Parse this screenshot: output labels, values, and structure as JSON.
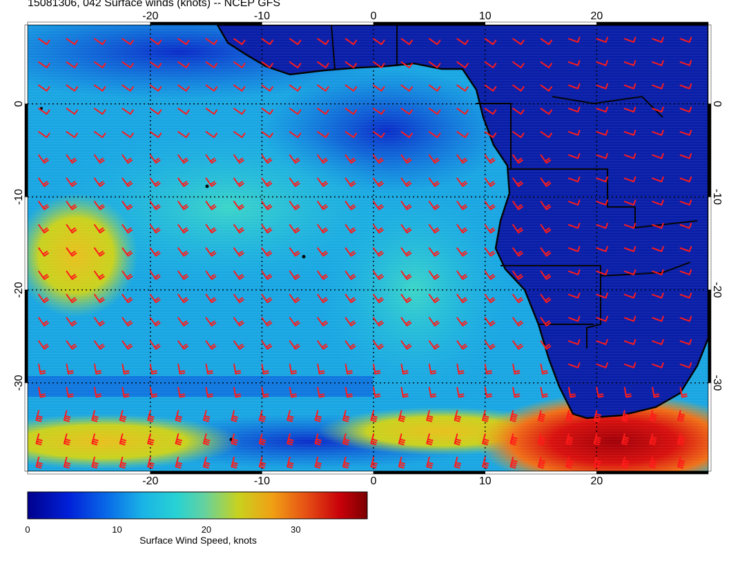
{
  "title": "15081306, 042 Surface winds (knots) -- NCEP GFS",
  "map": {
    "lon_range": [
      -31,
      30
    ],
    "lat_range": [
      -39.5,
      8.5
    ],
    "lon_ticks": [
      "-20",
      "-10",
      "0",
      "10",
      "20"
    ],
    "lat_ticks": [
      "0",
      "-10",
      "-20",
      "-30"
    ],
    "lon_tick_values": [
      -20,
      -10,
      0,
      10,
      20
    ],
    "lat_tick_values": [
      0,
      -10,
      -20,
      -30
    ],
    "land_color": "#0a1fa8",
    "barb_color": "#ff1a1a",
    "coast_color": "#000000",
    "grid_style": "dotted black"
  },
  "colorbar": {
    "labels": [
      "0",
      "10",
      "20",
      "30"
    ],
    "label_values": [
      0,
      10,
      20,
      30
    ],
    "range": [
      0,
      38
    ],
    "title": "Surface Wind Speed, knots",
    "colors": [
      "#00008c",
      "#0020d8",
      "#0a6ee8",
      "#1ab4e6",
      "#28d2d2",
      "#64d2a0",
      "#c8d21e",
      "#f0a014",
      "#e65014",
      "#c8000a",
      "#7a0000"
    ]
  }
}
